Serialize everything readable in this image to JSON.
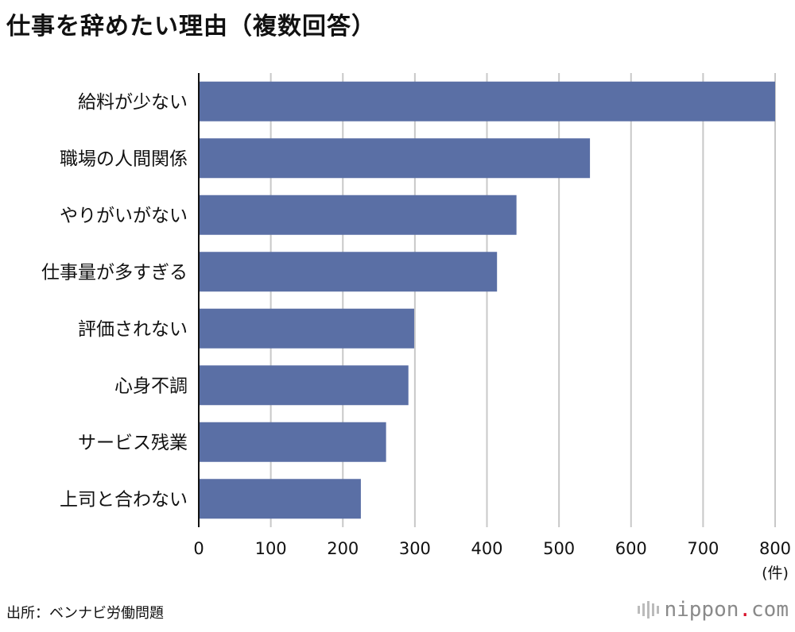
{
  "title": "仕事を辞めたい理由（複数回答）",
  "source": "出所：ベンナビ労働問題",
  "logo": {
    "pre": "nippon",
    "dot": ".",
    "post": "com"
  },
  "colors": {
    "bar": "#5a6fa5",
    "grid": "#c8c8c8",
    "axis": "#111111"
  },
  "chart_data": {
    "type": "bar",
    "orientation": "horizontal",
    "categories": [
      "給料が少ない",
      "職場の人間関係",
      "やりがいがない",
      "仕事量が多すぎる",
      "評価されない",
      "心身不調",
      "サービス残業",
      "上司と合わない"
    ],
    "values": [
      800,
      543,
      441,
      414,
      299,
      291,
      260,
      225
    ],
    "unit": "(件)",
    "xlim": [
      0,
      800
    ],
    "ticks": [
      0,
      100,
      200,
      300,
      400,
      500,
      600,
      700,
      800
    ],
    "grid": true
  }
}
